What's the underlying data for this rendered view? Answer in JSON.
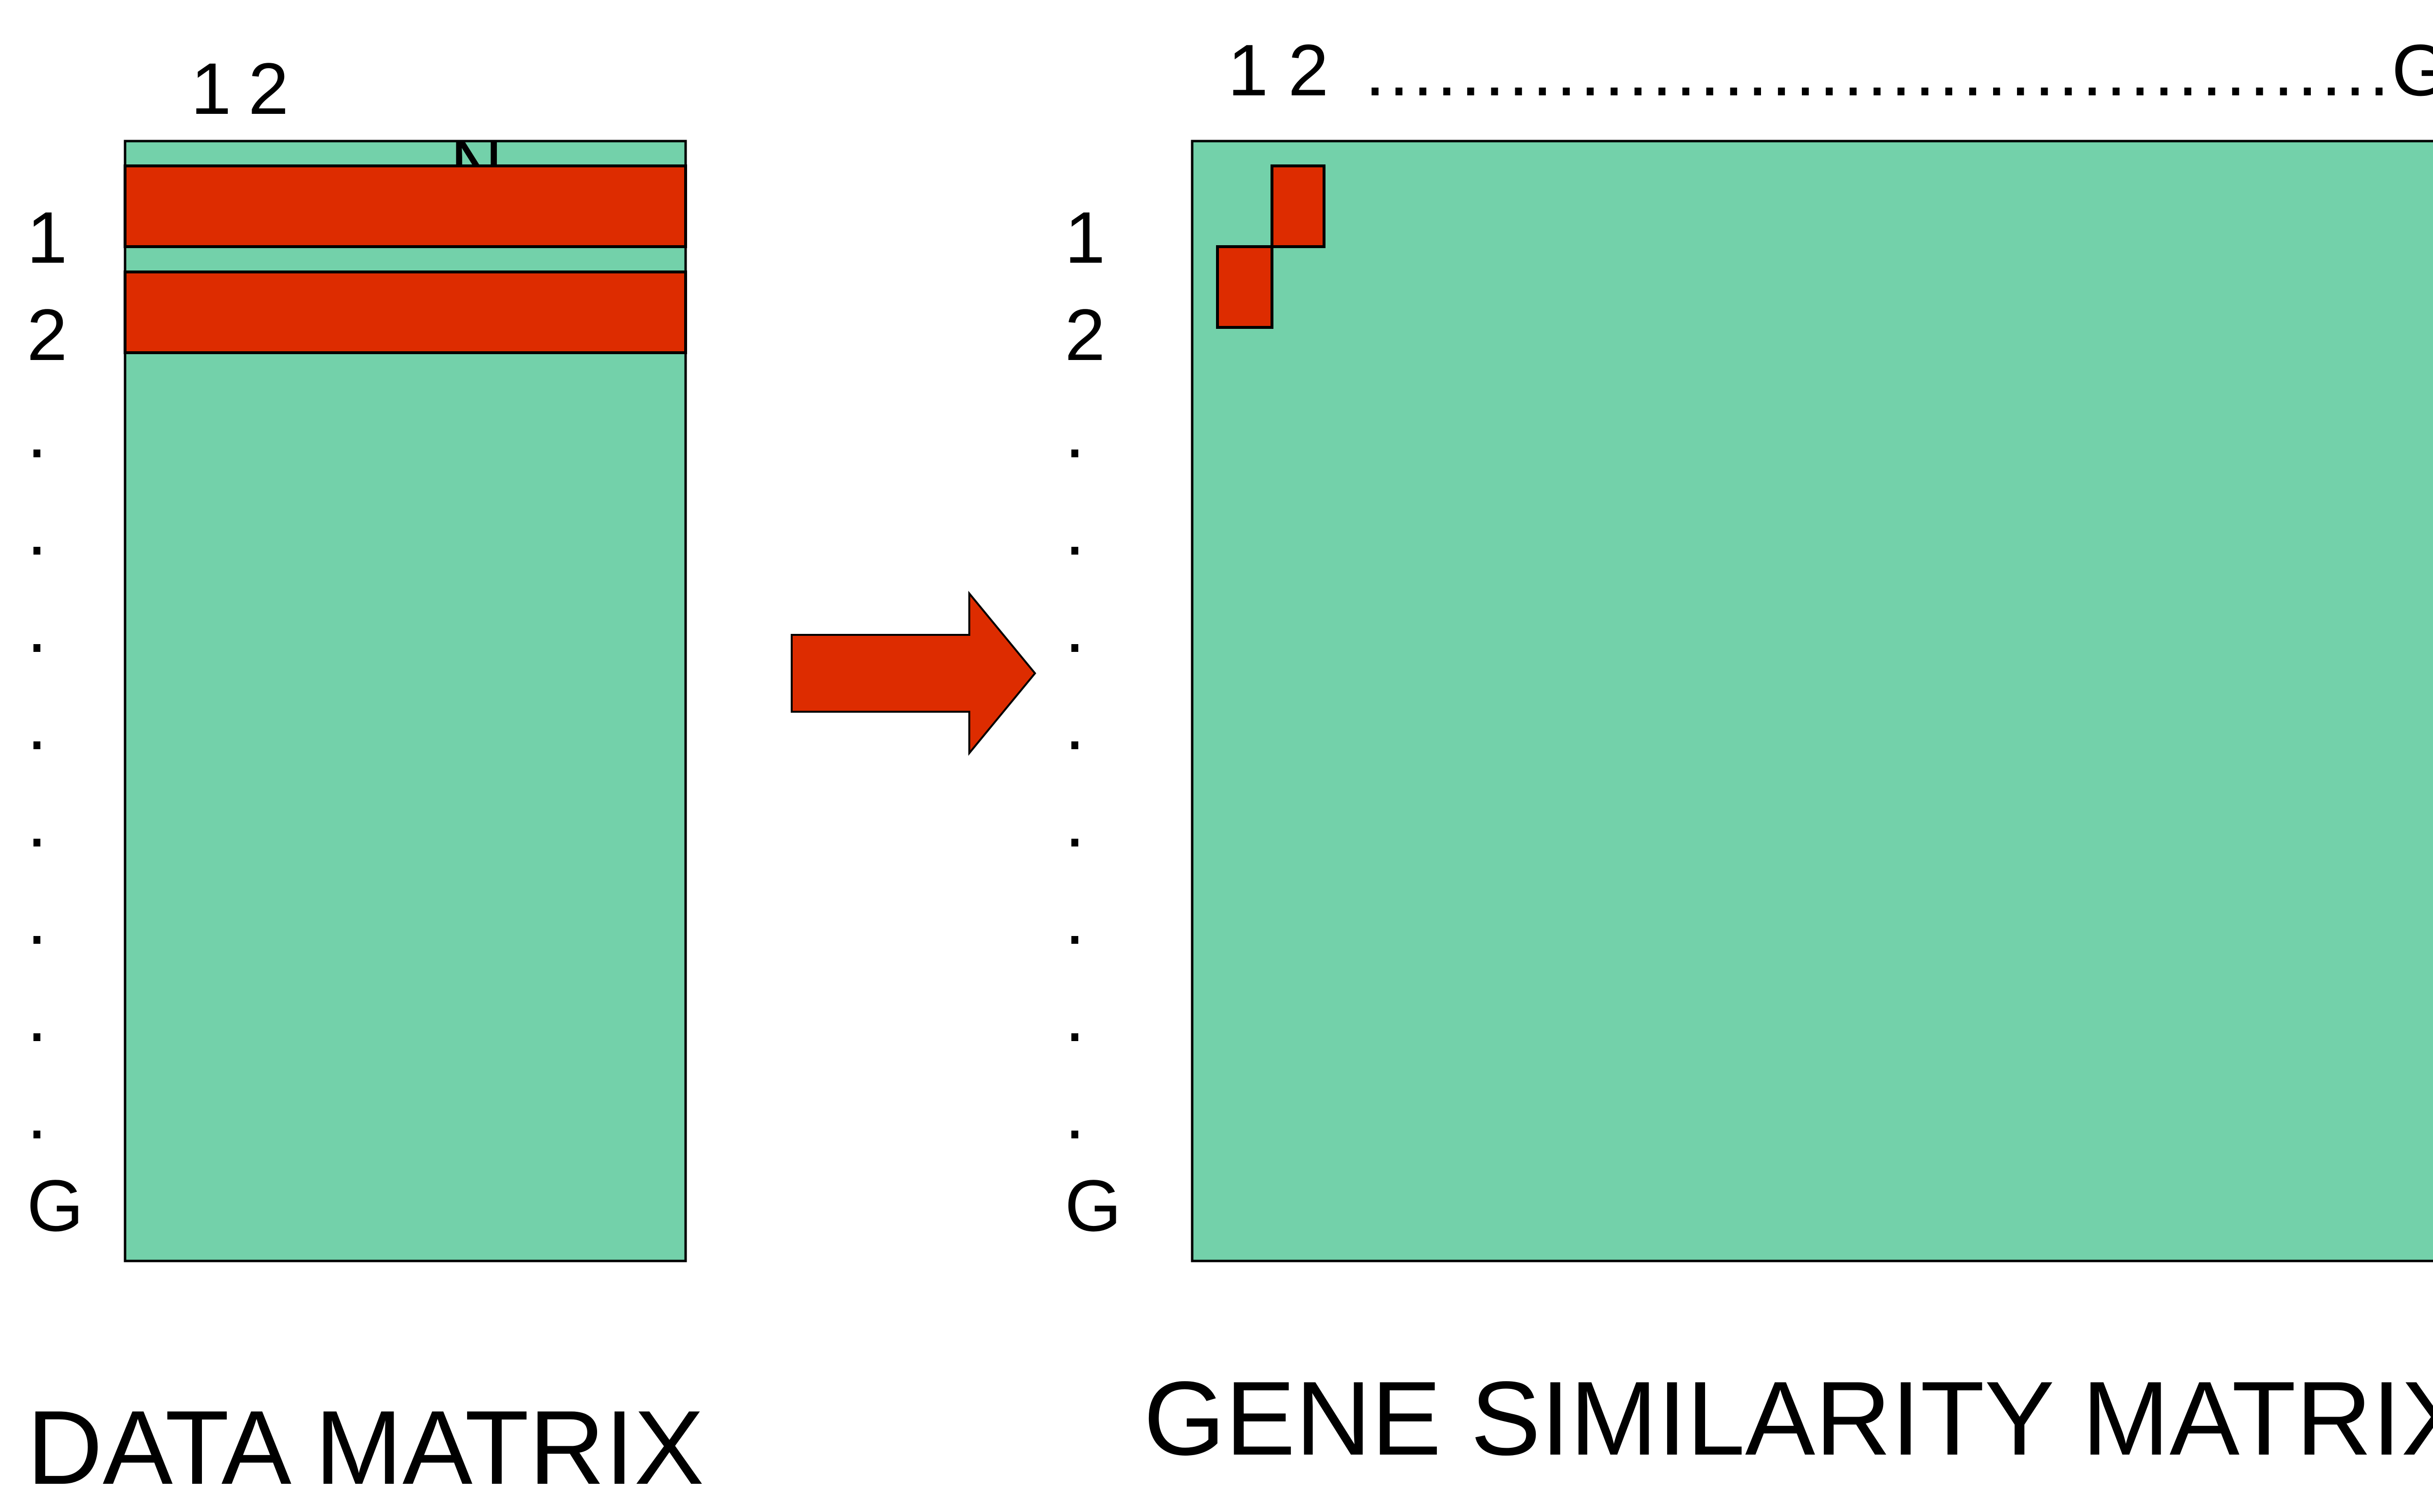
{
  "colors": {
    "matrix_fill": "#73D1AA",
    "highlight": "#DD2C00",
    "outline": "#000000"
  },
  "data_matrix": {
    "column_labels": [
      "1",
      "2"
    ],
    "hidden_column_label": "N",
    "row_labels": [
      "1",
      "2",
      ".",
      ".",
      ".",
      ".",
      ".",
      ".",
      ".",
      ".",
      "G"
    ],
    "highlighted_rows": [
      "1",
      "2"
    ],
    "title": "DATA MATRIX"
  },
  "arrow": {
    "icon": "right-arrow-icon",
    "color": "#DD2C00"
  },
  "similarity_matrix": {
    "column_labels": [
      "1",
      "2"
    ],
    "column_dots": "...........................................",
    "column_last_label": "G",
    "row_labels": [
      "1",
      "2",
      ".",
      ".",
      ".",
      ".",
      ".",
      ".",
      ".",
      ".",
      "G"
    ],
    "highlighted_cells": [
      {
        "row": "1",
        "col": "2"
      },
      {
        "row": "2",
        "col": "1"
      }
    ],
    "title": "GENE SIMILARITY MATRIX"
  }
}
